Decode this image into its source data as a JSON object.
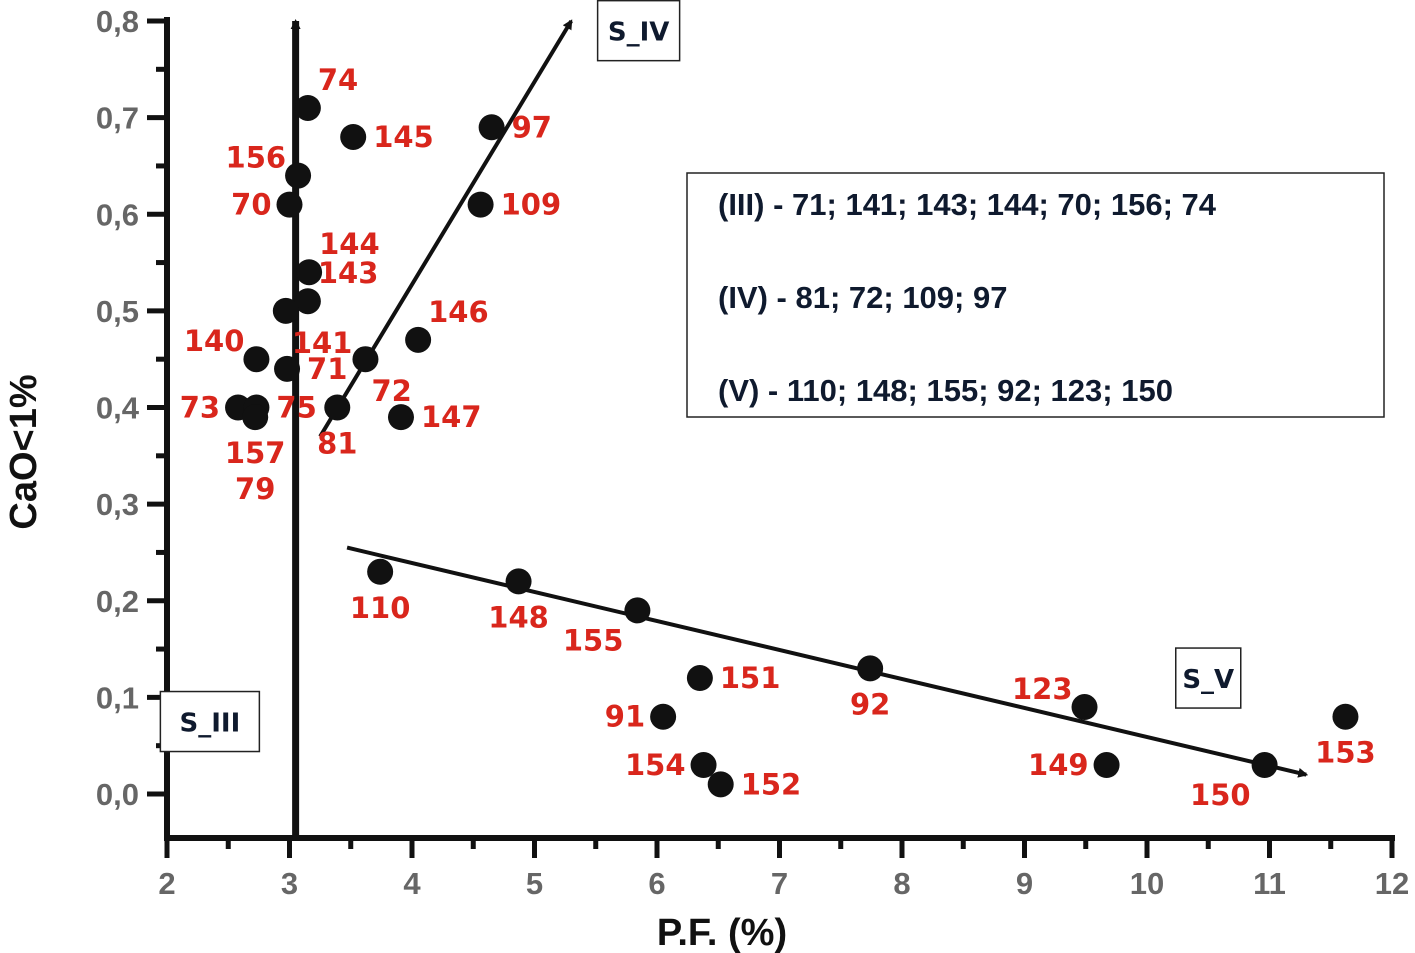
{
  "chart_data": {
    "type": "scatter",
    "title": "",
    "xlabel": "P.F. (%)",
    "ylabel": "CaO<1%",
    "xlim": [
      2,
      12
    ],
    "ylim": [
      0.0,
      0.8
    ],
    "x_ticks": [
      2,
      3,
      4,
      5,
      6,
      7,
      8,
      9,
      10,
      11,
      12
    ],
    "x_tick_labels": [
      "2",
      "3",
      "4",
      "5",
      "6",
      "7",
      "8",
      "9",
      "10",
      "11",
      "12"
    ],
    "y_ticks": [
      0.0,
      0.1,
      0.2,
      0.3,
      0.4,
      0.5,
      0.6,
      0.7,
      0.8
    ],
    "y_tick_labels": [
      "0,0",
      "0,1",
      "0,2",
      "0,3",
      "0,4",
      "0,5",
      "0,6",
      "0,7",
      "0,8"
    ],
    "grid": false,
    "colors": {
      "point": "#111111",
      "label": "#d9261c",
      "axis": "#111111",
      "tick_label": "#666666",
      "text": "#0f1a2e"
    },
    "points": [
      {
        "id": "74",
        "x": 3.15,
        "y": 0.71,
        "label_pos": "top-right"
      },
      {
        "id": "145",
        "x": 3.52,
        "y": 0.68,
        "label_pos": "right"
      },
      {
        "id": "97",
        "x": 4.65,
        "y": 0.69,
        "label_pos": "right"
      },
      {
        "id": "156",
        "x": 3.07,
        "y": 0.64,
        "label_pos": "top-left"
      },
      {
        "id": "70",
        "x": 3.0,
        "y": 0.61,
        "label_pos": "left"
      },
      {
        "id": "109",
        "x": 4.56,
        "y": 0.61,
        "label_pos": "right"
      },
      {
        "id": "144",
        "x": 3.16,
        "y": 0.54,
        "label_pos": "top-right"
      },
      {
        "id": "143",
        "x": 3.15,
        "y": 0.51,
        "label_pos": "top-right"
      },
      {
        "id": "141",
        "x": 2.97,
        "y": 0.5,
        "label_pos": "bottom-right"
      },
      {
        "id": "146",
        "x": 4.05,
        "y": 0.47,
        "label_pos": "top-right"
      },
      {
        "id": "140",
        "x": 2.73,
        "y": 0.45,
        "label_pos": "top-left"
      },
      {
        "id": "72",
        "x": 3.62,
        "y": 0.45,
        "label_pos": "bottom-right"
      },
      {
        "id": "71",
        "x": 2.98,
        "y": 0.44,
        "label_pos": "right"
      },
      {
        "id": "73",
        "x": 2.58,
        "y": 0.4,
        "label_pos": "left"
      },
      {
        "id": "75",
        "x": 2.73,
        "y": 0.4,
        "label_pos": "right"
      },
      {
        "id": "157",
        "x": 2.72,
        "y": 0.39,
        "label_pos": "bottom"
      },
      {
        "id": "79",
        "x": 2.72,
        "y": 0.39,
        "label_pos": "bottom-far"
      },
      {
        "id": "81",
        "x": 3.39,
        "y": 0.4,
        "label_pos": "bottom"
      },
      {
        "id": "147",
        "x": 3.91,
        "y": 0.39,
        "label_pos": "right"
      },
      {
        "id": "110",
        "x": 3.74,
        "y": 0.23,
        "label_pos": "bottom"
      },
      {
        "id": "148",
        "x": 4.87,
        "y": 0.22,
        "label_pos": "bottom"
      },
      {
        "id": "155",
        "x": 5.84,
        "y": 0.19,
        "label_pos": "bottom-left"
      },
      {
        "id": "151",
        "x": 6.35,
        "y": 0.12,
        "label_pos": "right"
      },
      {
        "id": "92",
        "x": 7.74,
        "y": 0.13,
        "label_pos": "bottom"
      },
      {
        "id": "91",
        "x": 6.05,
        "y": 0.08,
        "label_pos": "left"
      },
      {
        "id": "123",
        "x": 9.49,
        "y": 0.09,
        "label_pos": "top-left"
      },
      {
        "id": "153",
        "x": 11.62,
        "y": 0.08,
        "label_pos": "bottom"
      },
      {
        "id": "154",
        "x": 6.38,
        "y": 0.03,
        "label_pos": "left"
      },
      {
        "id": "152",
        "x": 6.52,
        "y": 0.01,
        "label_pos": "right"
      },
      {
        "id": "149",
        "x": 9.67,
        "y": 0.03,
        "label_pos": "left"
      },
      {
        "id": "150",
        "x": 10.96,
        "y": 0.03,
        "label_pos": "bottom-left"
      }
    ],
    "trend_arrows": [
      {
        "name": "S_III",
        "from": [
          3.05,
          0.0
        ],
        "to": [
          3.05,
          0.8
        ]
      },
      {
        "name": "S_IV",
        "from": [
          3.25,
          0.37
        ],
        "to": [
          5.3,
          0.8
        ]
      },
      {
        "name": "S_V",
        "from": [
          3.47,
          0.255
        ],
        "to": [
          11.3,
          0.02
        ]
      }
    ],
    "series_tags": [
      {
        "text": "S_III",
        "anchor": [
          2.35,
          0.075
        ]
      },
      {
        "text": "S_IV",
        "anchor": [
          5.85,
          0.79
        ]
      },
      {
        "text": "S_V",
        "anchor": [
          10.5,
          0.12
        ]
      }
    ],
    "annotation_box": {
      "lines": [
        "(III) - 71; 141; 143; 144; 70; 156; 74",
        "(IV) - 81; 72; 109; 97",
        "(V) - 110; 148; 155; 92; 123; 150"
      ]
    }
  }
}
